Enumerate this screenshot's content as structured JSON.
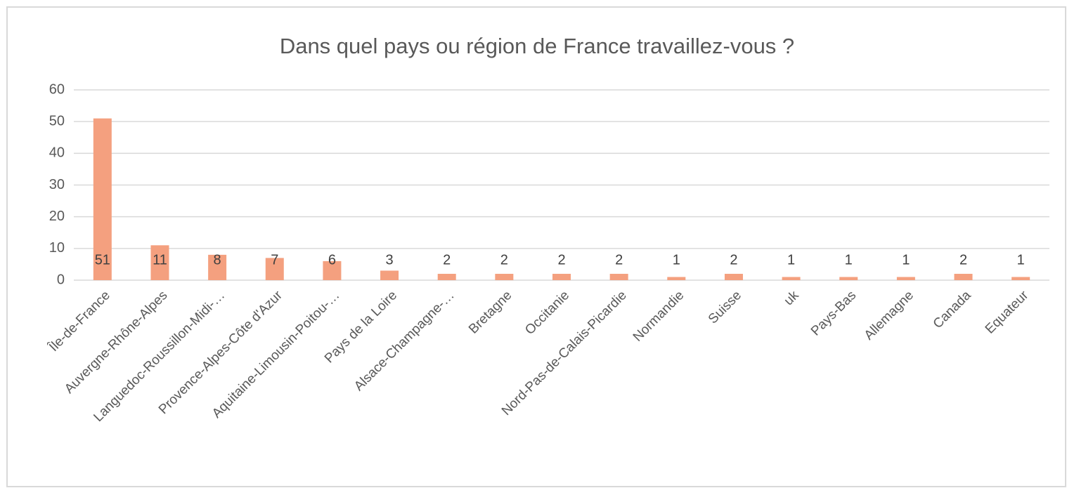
{
  "chart_data": {
    "type": "bar",
    "title": "Dans quel pays ou région de France travaillez-vous ?",
    "categories": [
      "Île-de-France",
      "Auvergne-Rhône-Alpes",
      "Languedoc-Roussillon-Midi-…",
      "Provence-Alpes-Côte d'Azur",
      "Aquitaine-Limousin-Poitou-…",
      "Pays de la Loire",
      "Alsace-Champagne-…",
      "Bretagne",
      "Occitanie",
      "Nord-Pas-de-Calais-Picardie",
      "Normandie",
      "Suisse",
      "uk",
      "Pays-Bas",
      "Allemagne",
      "Canada",
      "Equateur"
    ],
    "values": [
      51,
      11,
      8,
      7,
      6,
      3,
      2,
      2,
      2,
      2,
      1,
      2,
      1,
      1,
      1,
      2,
      1
    ],
    "color": "#f4a07f",
    "ylim": [
      0,
      60
    ],
    "yticks": [
      0,
      10,
      20,
      30,
      40,
      50,
      60
    ],
    "grid": true
  }
}
